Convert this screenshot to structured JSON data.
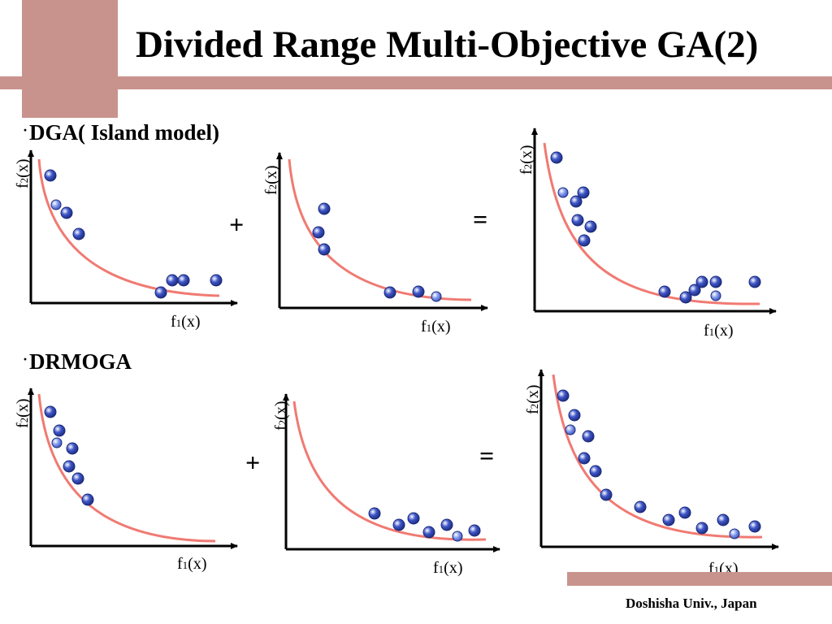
{
  "title": "Divided Range Multi-Objective GA(2)",
  "footer": "Doshisha Univ., Japan",
  "colors": {
    "accent": "#c9938d",
    "curve": "#f07a72",
    "point_dark": "#3f57c9",
    "point_light": "#7f97ec"
  },
  "sections": [
    {
      "label": "DGA( Island model)",
      "bullet": "·",
      "plus": "+",
      "equals": "="
    },
    {
      "label": "DRMOGA",
      "bullet": "·",
      "plus": "+",
      "equals": "="
    }
  ],
  "axis_labels": {
    "x": "f",
    "x_sub": "1",
    "x_tail": "(x)",
    "y": "f",
    "y_sub": "2",
    "y_tail": "(x)"
  }
}
